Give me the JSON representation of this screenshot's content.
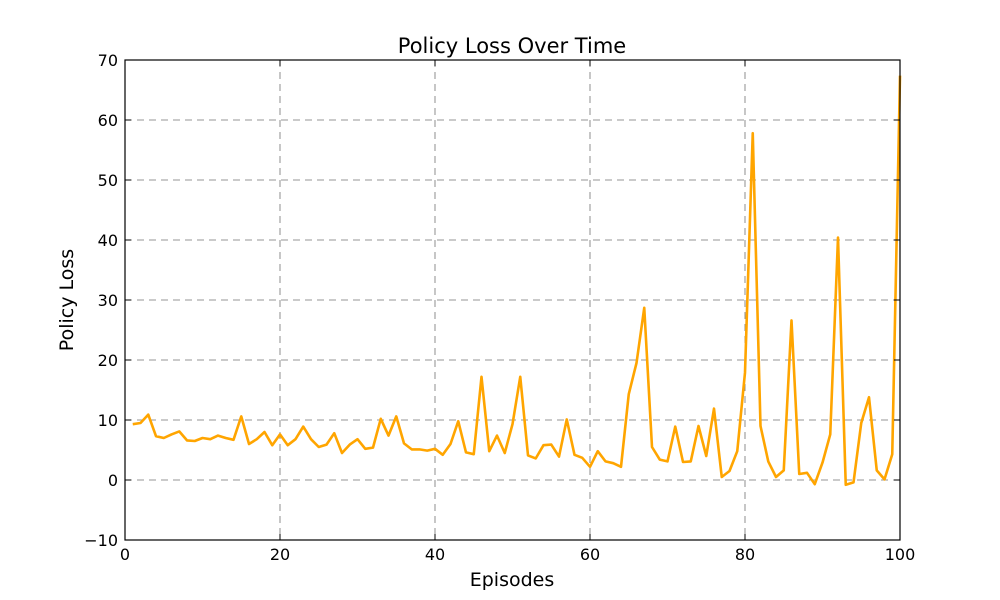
{
  "chart_data": {
    "type": "line",
    "title": "Policy Loss Over Time",
    "xlabel": "Episodes",
    "ylabel": "Policy Loss",
    "xlim": [
      0,
      100
    ],
    "ylim": [
      -10,
      70
    ],
    "xticks": [
      0,
      20,
      40,
      60,
      80,
      100
    ],
    "yticks": [
      -10,
      0,
      10,
      20,
      30,
      40,
      50,
      60,
      70
    ],
    "ytick_labels": [
      "−10",
      "0",
      "10",
      "20",
      "30",
      "40",
      "50",
      "60",
      "70"
    ],
    "grid": true,
    "colors": {
      "line": "#FFA500"
    },
    "x": [
      1,
      2,
      3,
      4,
      5,
      6,
      7,
      8,
      9,
      10,
      11,
      12,
      13,
      14,
      15,
      16,
      17,
      18,
      19,
      20,
      21,
      22,
      23,
      24,
      25,
      26,
      27,
      28,
      29,
      30,
      31,
      32,
      33,
      34,
      35,
      36,
      37,
      38,
      39,
      40,
      41,
      42,
      43,
      44,
      45,
      46,
      47,
      48,
      49,
      50,
      51,
      52,
      53,
      54,
      55,
      56,
      57,
      58,
      59,
      60,
      61,
      62,
      63,
      64,
      65,
      66,
      67,
      68,
      69,
      70,
      71,
      72,
      73,
      74,
      75,
      76,
      77,
      78,
      79,
      80,
      81,
      82,
      83,
      84,
      85,
      86,
      87,
      88,
      89,
      90,
      91,
      92,
      93,
      94,
      95,
      96,
      97,
      98,
      99,
      100
    ],
    "y": [
      9.3,
      9.5,
      10.9,
      7.3,
      7.0,
      7.6,
      8.1,
      6.6,
      6.5,
      7.0,
      6.8,
      7.4,
      7.0,
      6.7,
      10.6,
      6.0,
      6.8,
      8.0,
      5.8,
      7.6,
      5.8,
      6.8,
      8.9,
      6.8,
      5.5,
      5.9,
      7.8,
      4.5,
      5.9,
      6.8,
      5.2,
      5.4,
      10.2,
      7.4,
      10.6,
      6.1,
      5.1,
      5.1,
      4.9,
      5.2,
      4.2,
      6.0,
      9.8,
      4.6,
      4.3,
      17.2,
      4.8,
      7.4,
      4.5,
      9.3,
      17.2,
      4.1,
      3.6,
      5.8,
      5.9,
      3.9,
      10.1,
      4.2,
      3.7,
      2.2,
      4.8,
      3.1,
      2.8,
      2.2,
      14.3,
      19.5,
      28.7,
      5.5,
      3.4,
      3.1,
      8.9,
      3.0,
      3.1,
      9.0,
      4.0,
      11.9,
      0.5,
      1.5,
      4.8,
      17.9,
      57.8,
      9.0,
      3.1,
      0.5,
      1.6,
      26.6,
      1.0,
      1.2,
      -0.7,
      2.9,
      7.6,
      40.4,
      -0.8,
      -0.4,
      9.5,
      13.8,
      1.6,
      0.1,
      4.3,
      67.4
    ]
  }
}
